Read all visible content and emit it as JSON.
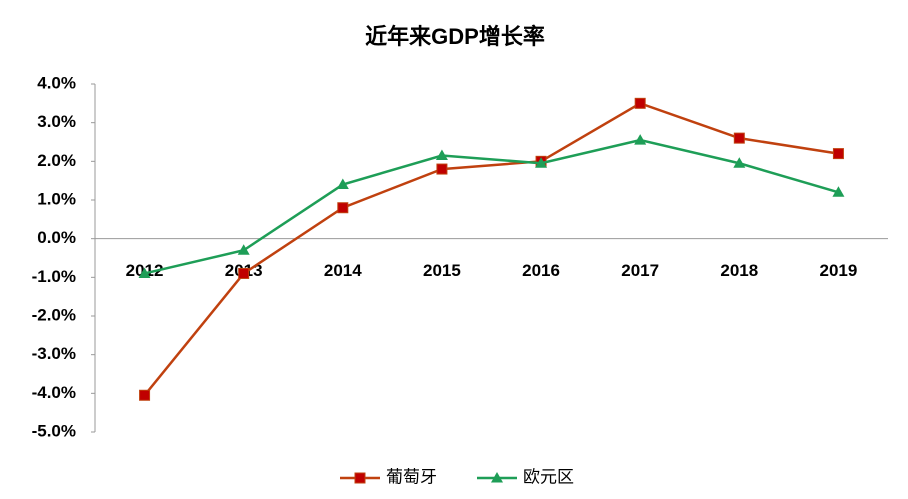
{
  "chart_data": {
    "type": "line",
    "title": "近年来GDP增长率",
    "categories": [
      "2012",
      "2013",
      "2014",
      "2015",
      "2016",
      "2017",
      "2018",
      "2019"
    ],
    "series": [
      {
        "name": "葡萄牙",
        "color": "#c0410f",
        "marker": "square",
        "values": [
          -4.05,
          -0.9,
          0.8,
          1.8,
          2.0,
          3.5,
          2.6,
          2.2
        ]
      },
      {
        "name": "欧元区",
        "color": "#1e9e57",
        "marker": "triangle",
        "values": [
          -0.9,
          -0.3,
          1.4,
          2.15,
          1.95,
          2.55,
          1.95,
          1.2
        ]
      }
    ],
    "ylim": [
      -5,
      4
    ],
    "yticks": [
      {
        "value": 4,
        "label": "4.0%"
      },
      {
        "value": 3,
        "label": "3.0%"
      },
      {
        "value": 2,
        "label": "2.0%"
      },
      {
        "value": 1,
        "label": "1.0%"
      },
      {
        "value": 0,
        "label": "0.0%"
      },
      {
        "value": -1,
        "label": "-1.0%"
      },
      {
        "value": -2,
        "label": "-2.0%"
      },
      {
        "value": -3,
        "label": "-3.0%"
      },
      {
        "value": -4,
        "label": "-4.0%"
      },
      {
        "value": -5,
        "label": "-5.0%"
      }
    ],
    "grid": false,
    "legend": "bottom"
  }
}
